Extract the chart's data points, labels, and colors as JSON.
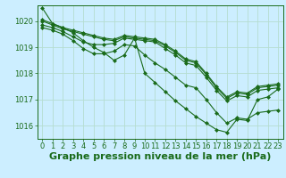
{
  "background_color": "#cceeff",
  "grid_color": "#b5ddd0",
  "line_color": "#1a6b1a",
  "marker_color": "#1a6b1a",
  "xlabel": "Graphe pression niveau de la mer (hPa)",
  "ylim": [
    1015.5,
    1020.6
  ],
  "xlim": [
    -0.5,
    23.5
  ],
  "yticks": [
    1016,
    1017,
    1018,
    1019,
    1020
  ],
  "xticks": [
    0,
    1,
    2,
    3,
    4,
    5,
    6,
    7,
    8,
    9,
    10,
    11,
    12,
    13,
    14,
    15,
    16,
    17,
    18,
    19,
    20,
    21,
    22,
    23
  ],
  "series": [
    [
      1020.5,
      1019.9,
      1019.75,
      1019.65,
      1019.55,
      1019.45,
      1019.35,
      1019.3,
      1019.45,
      1019.4,
      1019.35,
      1019.3,
      1019.1,
      1018.85,
      1018.55,
      1018.45,
      1018.0,
      1017.5,
      1017.1,
      1017.3,
      1017.25,
      1017.5,
      1017.55,
      1017.6
    ],
    [
      1020.0,
      1019.85,
      1019.7,
      1019.6,
      1019.5,
      1019.4,
      1019.3,
      1019.25,
      1019.4,
      1019.35,
      1019.3,
      1019.25,
      1019.05,
      1018.8,
      1018.5,
      1018.4,
      1017.95,
      1017.45,
      1017.05,
      1017.25,
      1017.2,
      1017.45,
      1017.5,
      1017.55
    ],
    [
      1019.85,
      1019.75,
      1019.6,
      1019.4,
      1019.2,
      1019.1,
      1019.1,
      1019.15,
      1019.35,
      1019.3,
      1019.25,
      1019.2,
      1018.95,
      1018.7,
      1018.4,
      1018.3,
      1017.85,
      1017.35,
      1016.95,
      1017.15,
      1017.1,
      1017.35,
      1017.4,
      1017.45
    ],
    [
      1019.75,
      1019.65,
      1019.5,
      1019.25,
      1018.95,
      1018.75,
      1018.75,
      1018.85,
      1019.1,
      1019.05,
      1018.7,
      1018.4,
      1018.15,
      1017.85,
      1017.55,
      1017.45,
      1017.0,
      1016.5,
      1016.1,
      1016.3,
      1016.25,
      1016.5,
      1016.55,
      1016.6
    ],
    [
      1020.05,
      1019.9,
      1019.75,
      1019.55,
      1019.25,
      1019.0,
      1018.8,
      1018.5,
      1018.7,
      1019.35,
      1018.0,
      1017.65,
      1017.3,
      1016.95,
      1016.65,
      1016.35,
      1016.1,
      1015.85,
      1015.75,
      1016.25,
      1016.2,
      1017.0,
      1017.1,
      1017.4
    ]
  ],
  "title_fontsize": 8,
  "tick_fontsize": 6
}
